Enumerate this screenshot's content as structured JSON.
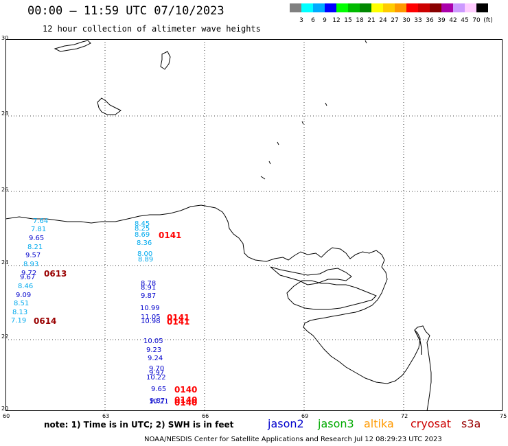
{
  "title": "00:00 – 11:59 UTC 07/10/2023",
  "subtitle": "12 hour collection of altimeter wave heights",
  "colors": {
    "jason2": "#0000cc",
    "jason3": "#00aa00",
    "altika": "#ff9900",
    "cryosat": "#cc0000",
    "s3a": "#990000",
    "obs_blue": "#0000cc",
    "obs_cyan": "#00aaee",
    "pass_red": "#ff0000",
    "pass_darkred": "#990000"
  },
  "scale": {
    "colors": [
      "#808080",
      "#00ffff",
      "#00aaff",
      "#0000ff",
      "#00ff00",
      "#00bb00",
      "#008800",
      "#ffff00",
      "#ffcc00",
      "#ff9900",
      "#ff0000",
      "#cc0000",
      "#880000",
      "#aa00aa",
      "#cc99ff",
      "#ffccff",
      "#000000"
    ],
    "labels": [
      "3",
      "6",
      "9",
      "12",
      "15",
      "18",
      "21",
      "24",
      "27",
      "30",
      "33",
      "36",
      "39",
      "42",
      "45",
      "70",
      "(ft)"
    ]
  },
  "lat_labels": [
    "30",
    "28",
    "26",
    "24",
    "22",
    "20"
  ],
  "lon_labels": [
    "60",
    "63",
    "66",
    "69",
    "72",
    "75"
  ],
  "observations": [
    {
      "text": "7.64",
      "c": "cyan"
    },
    {
      "text": "7.81",
      "c": "cyan"
    },
    {
      "text": "9.65",
      "c": "blue"
    },
    {
      "text": "8.21",
      "c": "cyan"
    },
    {
      "text": "9.57",
      "c": "blue"
    },
    {
      "text": "8.93",
      "c": "cyan"
    },
    {
      "text": "9.72",
      "c": "blue"
    },
    {
      "text": "9.67",
      "c": "blue"
    },
    {
      "text": "8.46",
      "c": "cyan"
    },
    {
      "text": "9.09",
      "c": "blue"
    },
    {
      "text": "8.51",
      "c": "cyan"
    },
    {
      "text": "8.13",
      "c": "cyan"
    },
    {
      "text": "7.19",
      "c": "cyan"
    },
    {
      "text": "8.45",
      "c": "cyan"
    },
    {
      "text": "8.25",
      "c": "cyan"
    },
    {
      "text": "8.69",
      "c": "cyan"
    },
    {
      "text": "8.36",
      "c": "cyan"
    },
    {
      "text": "8.00",
      "c": "cyan"
    },
    {
      "text": "8.89",
      "c": "cyan"
    },
    {
      "text": "8.78",
      "c": "blue"
    },
    {
      "text": "8.91",
      "c": "blue"
    },
    {
      "text": "9.87",
      "c": "blue"
    },
    {
      "text": "10.99",
      "c": "blue"
    },
    {
      "text": "11.05",
      "c": "blue"
    },
    {
      "text": "10.98",
      "c": "blue"
    },
    {
      "text": "10.05",
      "c": "blue"
    },
    {
      "text": "9.23",
      "c": "blue"
    },
    {
      "text": "9.24",
      "c": "blue"
    },
    {
      "text": "9.70",
      "c": "blue"
    },
    {
      "text": "9.97",
      "c": "blue"
    },
    {
      "text": "10.22",
      "c": "blue"
    },
    {
      "text": "9.65",
      "c": "blue"
    },
    {
      "text": "9.87",
      "c": "blue"
    },
    {
      "text": "10.21",
      "c": "blue"
    }
  ],
  "passes": [
    {
      "text": "0613",
      "c": "darkred"
    },
    {
      "text": "0614",
      "c": "darkred"
    },
    {
      "text": "0141",
      "c": "red"
    },
    {
      "text": "0141",
      "c": "red"
    },
    {
      "text": "0141",
      "c": "red"
    },
    {
      "text": "0140",
      "c": "red"
    },
    {
      "text": "0140",
      "c": "red"
    },
    {
      "text": "0140",
      "c": "red"
    }
  ],
  "note": "note: 1) Time is in UTC; 2) SWH is in feet",
  "legend": {
    "jason2": "jason2",
    "jason3": "jason3",
    "altika": "altika",
    "cryosat": "cryosat",
    "s3a": "s3a"
  },
  "footer": "NOAA/NESDIS Center for Satellite Applications and Research    Jul 12 08:29:23 UTC 2023"
}
